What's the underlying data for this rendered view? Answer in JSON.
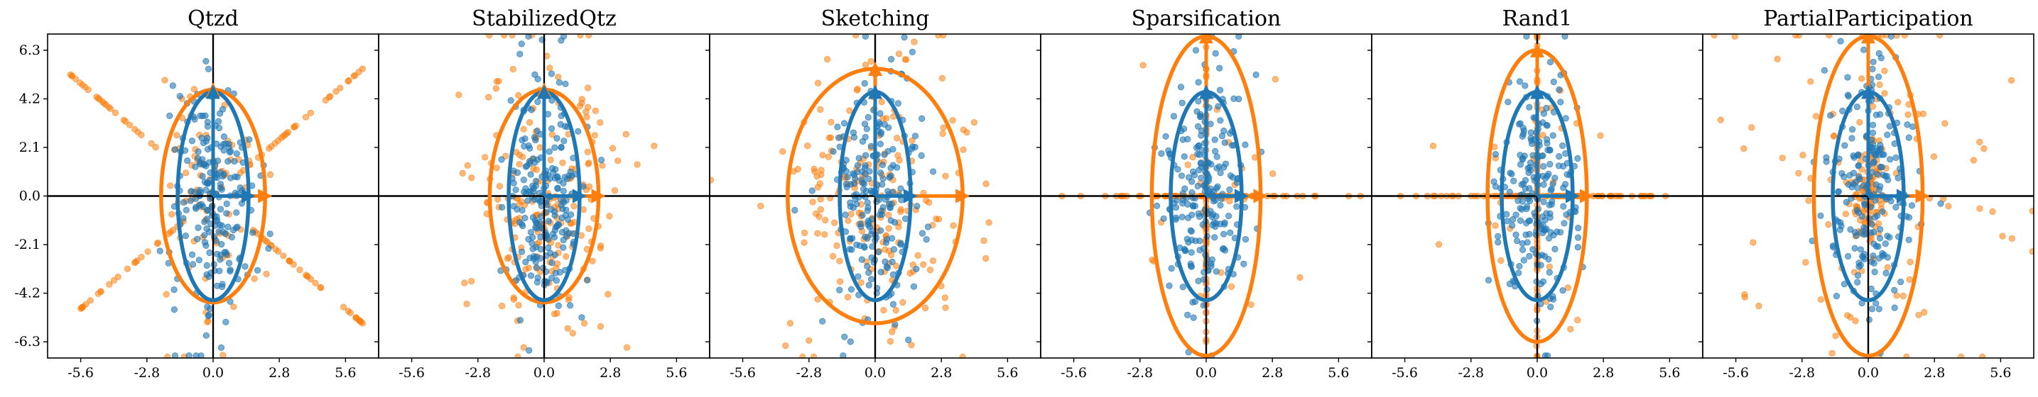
{
  "chart_data": {
    "type": "scatter",
    "xlim": [
      -7.0,
      7.0
    ],
    "ylim": [
      -7.0,
      7.0
    ],
    "xticks": [
      "-5.6",
      "-2.8",
      "0.0",
      "2.8",
      "5.6"
    ],
    "yticks": [
      "6.3",
      "4.2",
      "2.1",
      "0.0",
      "-2.1",
      "-4.2",
      "-6.3"
    ],
    "grid": false,
    "colors": {
      "original": "#1f77b4",
      "compressed": "#ff7f0e",
      "axes": "#000000"
    },
    "panels": [
      {
        "title": "Qtzd",
        "original_ellipse": {
          "rx": 1.5,
          "ry": 4.5
        },
        "compressed_ellipse": {
          "rx": 2.2,
          "ry": 4.6
        },
        "original_arrows": [
          [
            0,
            4.5
          ],
          [
            1.5,
            0
          ]
        ],
        "compressed_arrows": [
          [
            0,
            4.6
          ],
          [
            2.2,
            0
          ]
        ],
        "compressed_pattern": "rays"
      },
      {
        "title": "StabilizedQtz",
        "original_ellipse": {
          "rx": 1.5,
          "ry": 4.5
        },
        "compressed_ellipse": {
          "rx": 2.3,
          "ry": 4.6
        },
        "original_arrows": [
          [
            0,
            4.5
          ],
          [
            1.5,
            0
          ]
        ],
        "compressed_arrows": [
          [
            0,
            4.6
          ],
          [
            2.3,
            0
          ]
        ],
        "compressed_pattern": "cloud"
      },
      {
        "title": "Sketching",
        "original_ellipse": {
          "rx": 1.5,
          "ry": 4.5
        },
        "compressed_ellipse": {
          "rx": 3.7,
          "ry": 5.5
        },
        "original_arrows": [
          [
            0,
            4.5
          ],
          [
            1.5,
            0
          ]
        ],
        "compressed_arrows": [
          [
            0,
            5.5
          ],
          [
            3.7,
            0
          ]
        ],
        "compressed_pattern": "cloud"
      },
      {
        "title": "Sparsification",
        "original_ellipse": {
          "rx": 1.5,
          "ry": 4.5
        },
        "compressed_ellipse": {
          "rx": 2.3,
          "ry": 6.9
        },
        "original_arrows": [
          [
            0,
            4.5
          ],
          [
            1.5,
            0
          ]
        ],
        "compressed_arrows": [
          [
            0,
            6.9
          ],
          [
            2.3,
            0
          ]
        ],
        "compressed_pattern": "axes"
      },
      {
        "title": "Rand1",
        "original_ellipse": {
          "rx": 1.5,
          "ry": 4.5
        },
        "compressed_ellipse": {
          "rx": 2.1,
          "ry": 6.3
        },
        "original_arrows": [
          [
            0,
            4.5
          ],
          [
            1.5,
            0
          ]
        ],
        "compressed_arrows": [
          [
            0,
            6.3
          ],
          [
            2.1,
            0
          ]
        ],
        "compressed_pattern": "axes"
      },
      {
        "title": "PartialParticipation",
        "original_ellipse": {
          "rx": 1.5,
          "ry": 4.5
        },
        "compressed_ellipse": {
          "rx": 2.3,
          "ry": 6.9
        },
        "original_arrows": [
          [
            0,
            4.5
          ],
          [
            1.5,
            0
          ]
        ],
        "compressed_arrows": [
          [
            0,
            6.9
          ],
          [
            2.3,
            0
          ]
        ],
        "compressed_pattern": "spread"
      }
    ]
  }
}
